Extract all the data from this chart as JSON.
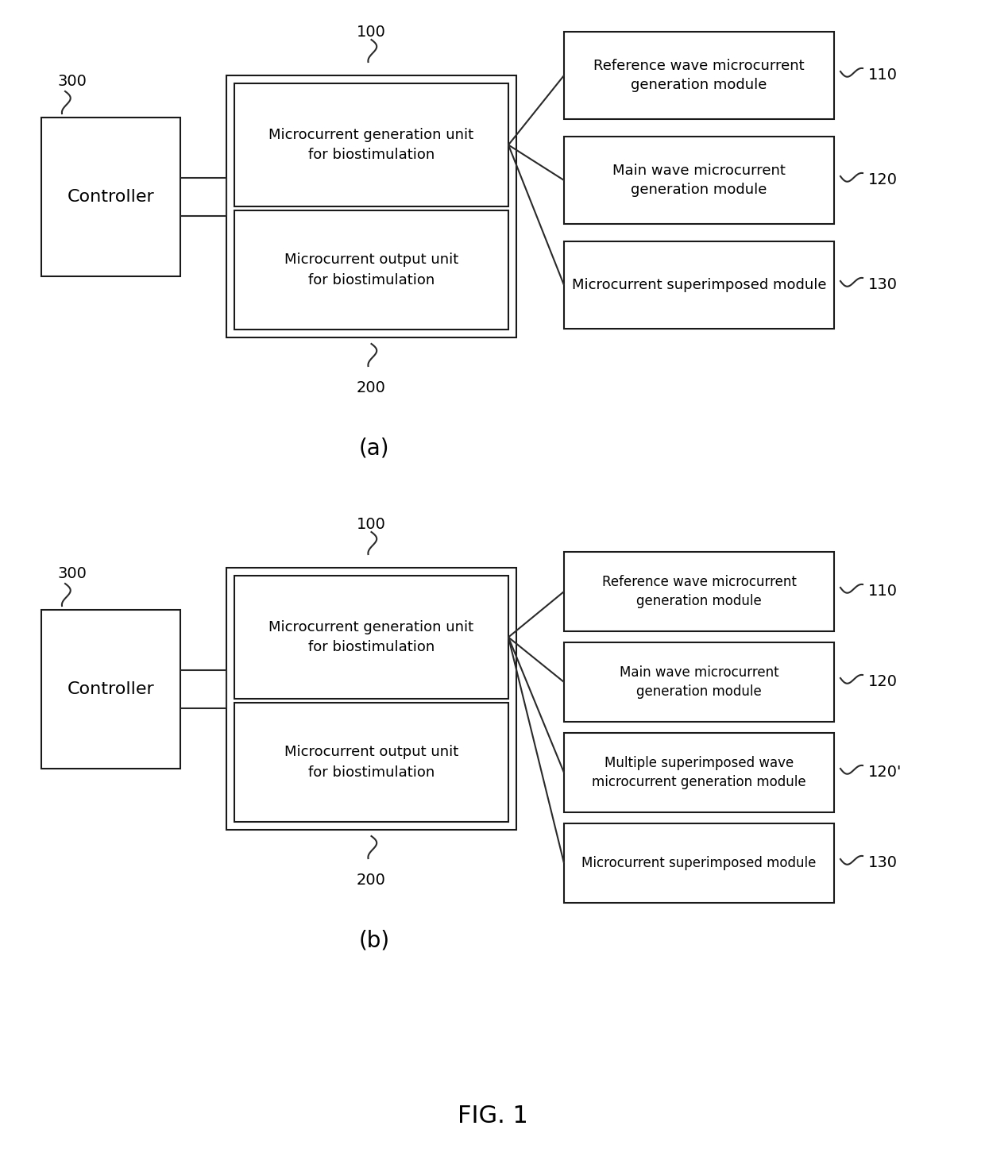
{
  "bg_color": "#ffffff",
  "line_color": "#2a2a2a",
  "box_edge_color": "#1a1a1a",
  "text_color": "#000000",
  "fig_label": "FIG. 1",
  "diagram_a": {
    "label": "(a)",
    "label_100": "100",
    "label_200": "200",
    "label_300": "300",
    "controller_text": "Controller",
    "gen_unit_text": "Microcurrent generation unit\nfor biostimulation",
    "out_unit_text": "Microcurrent output unit\nfor biostimulation",
    "modules": [
      {
        "label": "110",
        "text": "Reference wave microcurrent\ngeneration module"
      },
      {
        "label": "120",
        "text": "Main wave microcurrent\ngeneration module"
      },
      {
        "label": "130",
        "text": "Microcurrent superimposed module"
      }
    ]
  },
  "diagram_b": {
    "label": "(b)",
    "label_100": "100",
    "label_200": "200",
    "label_300": "300",
    "controller_text": "Controller",
    "gen_unit_text": "Microcurrent generation unit\nfor biostimulation",
    "out_unit_text": "Microcurrent output unit\nfor biostimulation",
    "modules": [
      {
        "label": "110",
        "text": "Reference wave microcurrent\ngeneration module"
      },
      {
        "label": "120",
        "text": "Main wave microcurrent\ngeneration module"
      },
      {
        "label": "120'",
        "text": "Multiple superimposed wave\nmicrocurrent generation module"
      },
      {
        "label": "130",
        "text": "Microcurrent superimposed module"
      }
    ]
  }
}
